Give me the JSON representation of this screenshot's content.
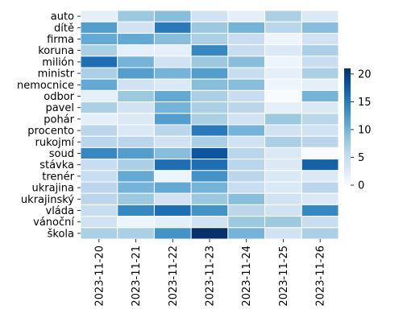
{
  "chart_data": {
    "type": "heatmap",
    "x_categories": [
      "2023-11-20",
      "2023-11-21",
      "2023-11-22",
      "2023-11-23",
      "2023-11-24",
      "2023-11-25",
      "2023-11-26"
    ],
    "y_categories": [
      "auto",
      "dítě",
      "firma",
      "koruna",
      "milión",
      "ministr",
      "nemocnice",
      "odbor",
      "pavel",
      "pohár",
      "procento",
      "rukojmí",
      "soud",
      "stávka",
      "trenér",
      "ukrajina",
      "ukrajinský",
      "vláda",
      "vánoční",
      "škola"
    ],
    "values": [
      [
        2,
        8,
        9,
        4,
        2,
        7,
        3
      ],
      [
        12,
        4,
        15,
        8,
        10,
        6,
        9
      ],
      [
        11,
        11,
        9,
        7,
        5,
        1,
        4
      ],
      [
        7,
        2,
        2,
        14,
        5,
        3,
        7
      ],
      [
        16,
        10,
        4,
        8,
        9,
        1,
        5
      ],
      [
        7,
        12,
        10,
        12,
        5,
        2,
        7
      ],
      [
        11,
        4,
        3,
        9,
        9,
        1,
        2
      ],
      [
        2,
        8,
        11,
        7,
        5,
        0,
        10
      ],
      [
        7,
        4,
        10,
        7,
        6,
        2,
        3
      ],
      [
        2,
        3,
        12,
        7,
        4,
        8,
        6
      ],
      [
        6,
        3,
        6,
        15,
        10,
        4,
        4
      ],
      [
        6,
        6,
        4,
        7,
        4,
        7,
        6
      ],
      [
        14,
        12,
        9,
        18,
        6,
        3,
        0
      ],
      [
        5,
        7,
        16,
        16,
        6,
        3,
        17
      ],
      [
        5,
        11,
        1,
        13,
        6,
        3,
        3
      ],
      [
        6,
        10,
        11,
        10,
        5,
        3,
        6
      ],
      [
        6,
        8,
        4,
        8,
        9,
        4,
        3
      ],
      [
        5,
        14,
        16,
        13,
        6,
        4,
        14
      ],
      [
        4,
        1,
        2,
        4,
        8,
        8,
        5
      ],
      [
        7,
        7,
        13,
        21,
        10,
        4,
        7
      ]
    ],
    "vmin": 0,
    "vmax": 21,
    "colorbar_ticks": [
      0,
      5,
      10,
      15,
      20
    ],
    "title": "",
    "xlabel": "",
    "ylabel": "",
    "grid": false,
    "legend": "colorbar-right",
    "colors": {
      "low": "#f7fbff",
      "high": "#08306b",
      "cell_border": "#ffffff"
    }
  }
}
